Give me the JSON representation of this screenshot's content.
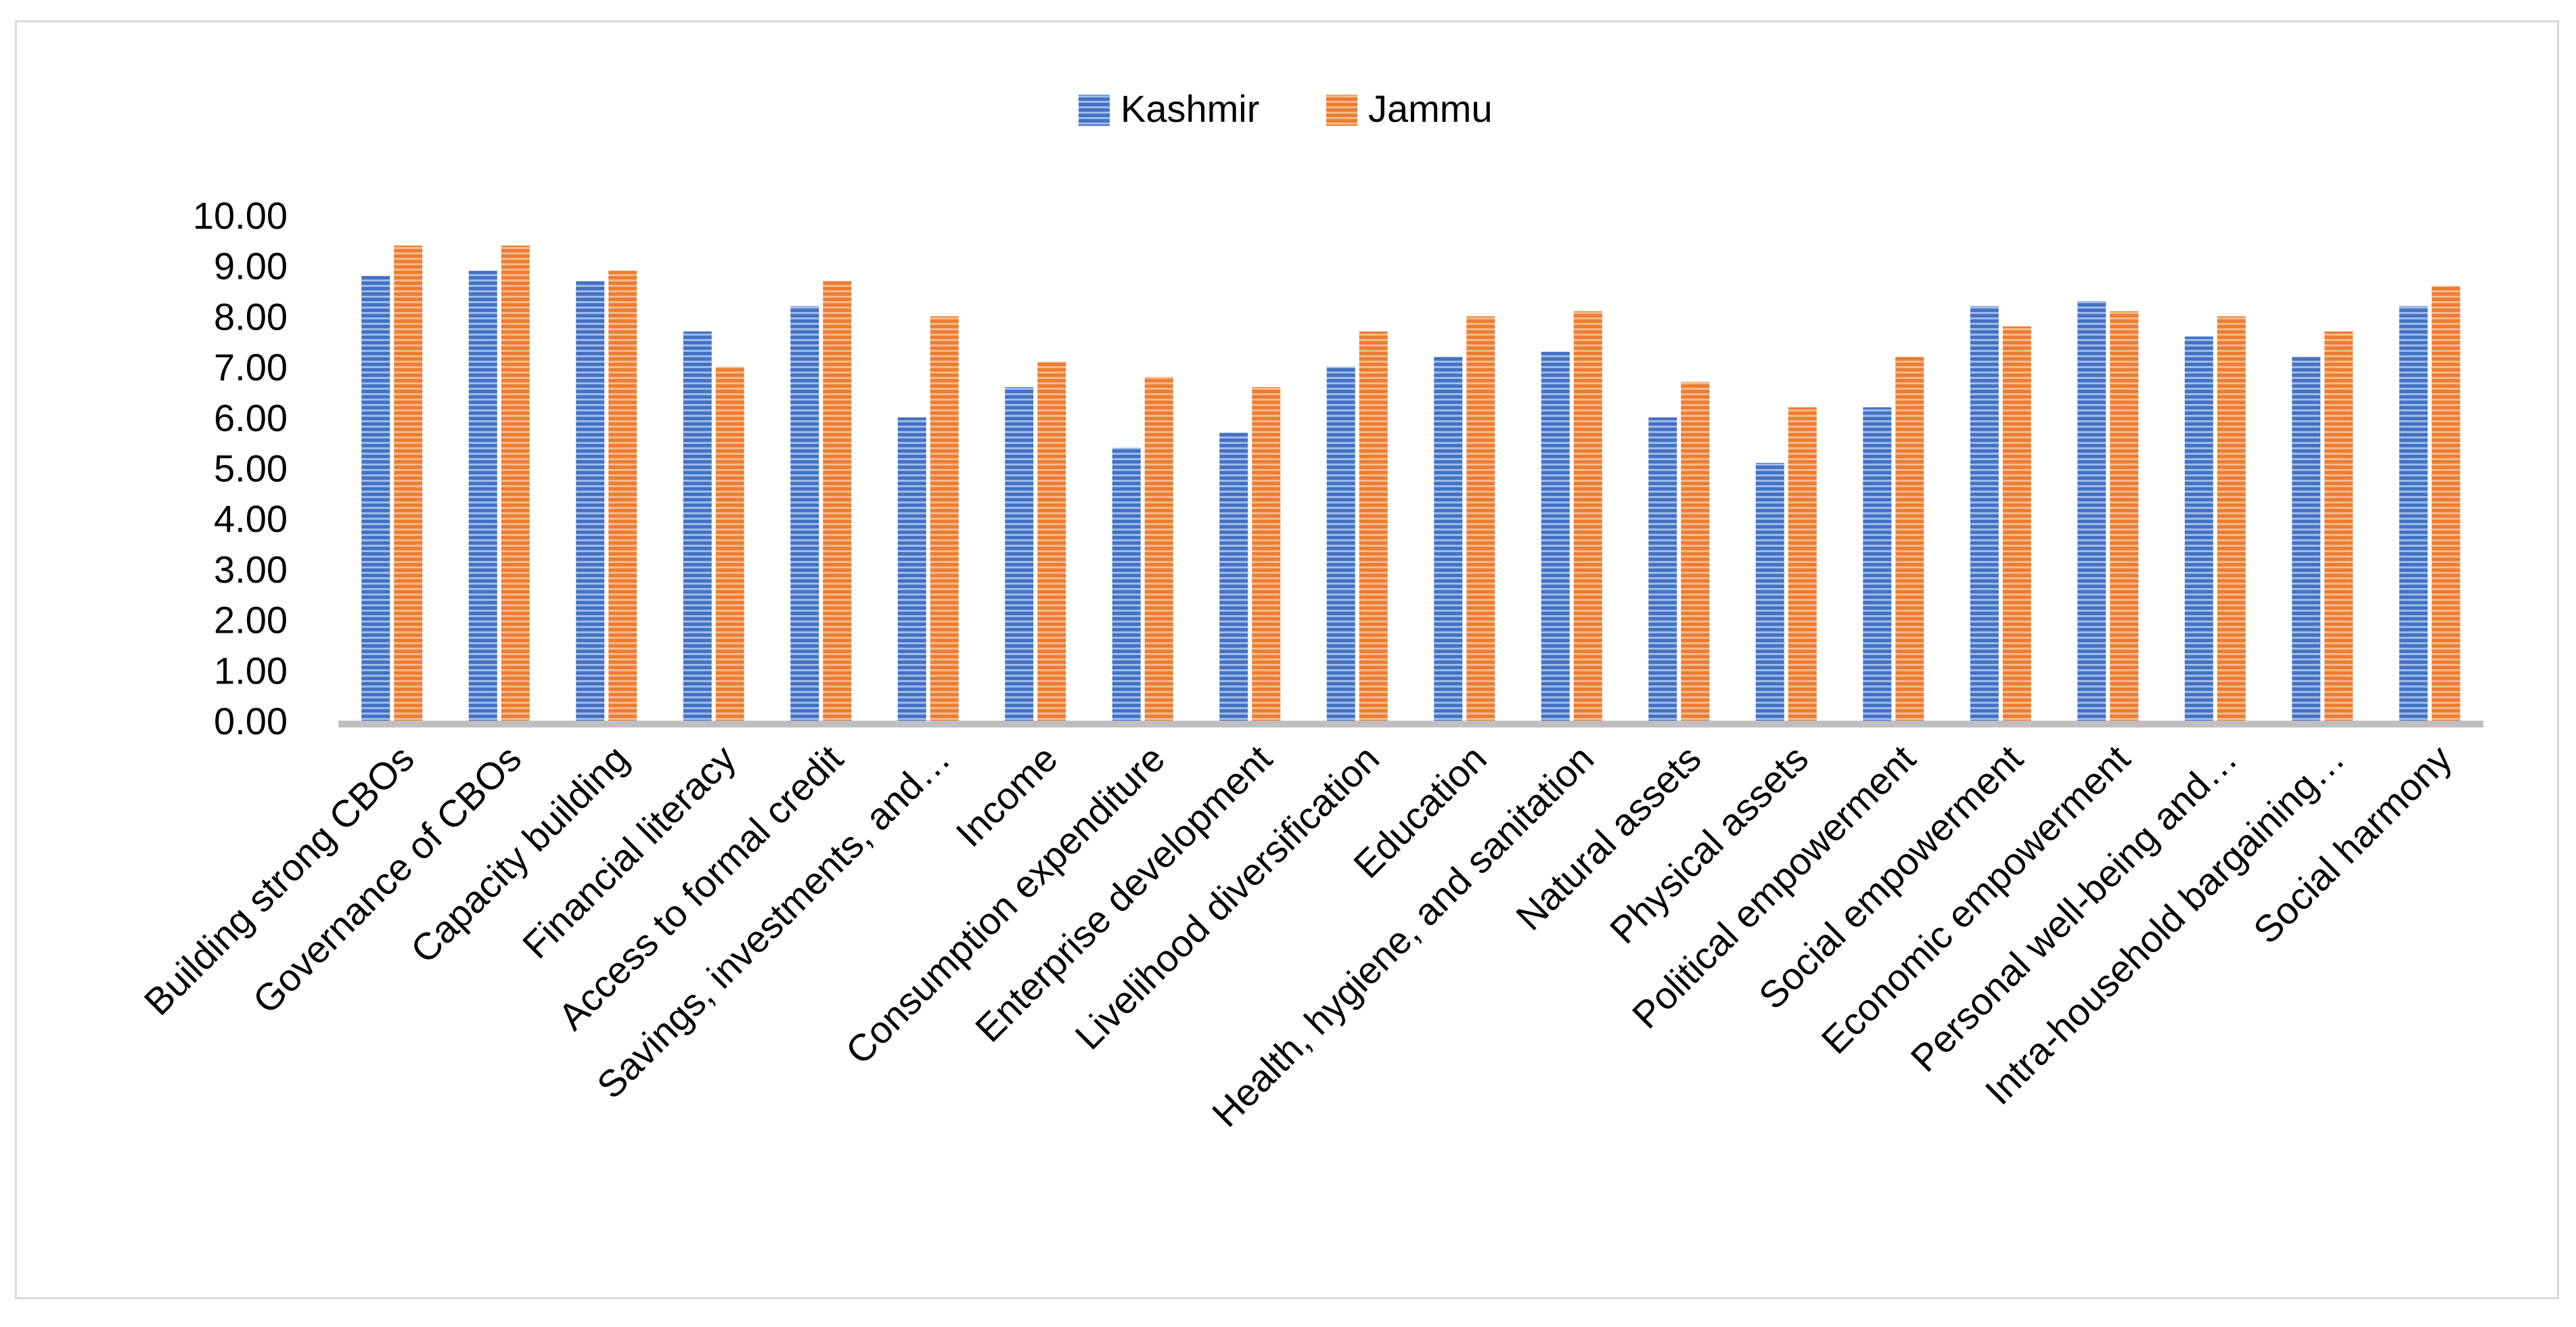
{
  "chart_data": {
    "type": "bar",
    "categories": [
      "Building strong CBOs",
      "Governance of CBOs",
      "Capacity building",
      "Financial literacy",
      "Access to formal credit",
      "Savings, investments, and…",
      "Income",
      "Consumption expenditure",
      "Enterprise development",
      "Livelihood diversification",
      "Education",
      "Health, hygiene, and sanitation",
      "Natural assets",
      "Physical assets",
      "Political empowerment",
      "Social empowerment",
      "Economic empowerment",
      "Personal well-being and…",
      "Intra-household bargaining…",
      "Social harmony"
    ],
    "series": [
      {
        "name": "Kashmir",
        "color": "#4472c4",
        "values": [
          8.8,
          8.9,
          8.7,
          7.7,
          8.2,
          6.0,
          6.6,
          5.4,
          5.7,
          7.0,
          7.2,
          7.3,
          6.0,
          5.1,
          6.2,
          8.2,
          8.3,
          7.6,
          7.2,
          8.2
        ]
      },
      {
        "name": "Jammu",
        "color": "#ed7d31",
        "values": [
          9.4,
          9.4,
          8.9,
          7.0,
          8.7,
          8.0,
          7.1,
          6.8,
          6.6,
          7.7,
          8.0,
          8.1,
          6.7,
          6.2,
          7.2,
          7.8,
          8.1,
          8.0,
          7.7,
          8.6
        ]
      }
    ],
    "y_ticks": [
      "0.00",
      "1.00",
      "2.00",
      "3.00",
      "4.00",
      "5.00",
      "6.00",
      "7.00",
      "8.00",
      "9.00",
      "10.00"
    ],
    "ylim": [
      0,
      10
    ],
    "legend_position": "top-center",
    "grid": false
  }
}
